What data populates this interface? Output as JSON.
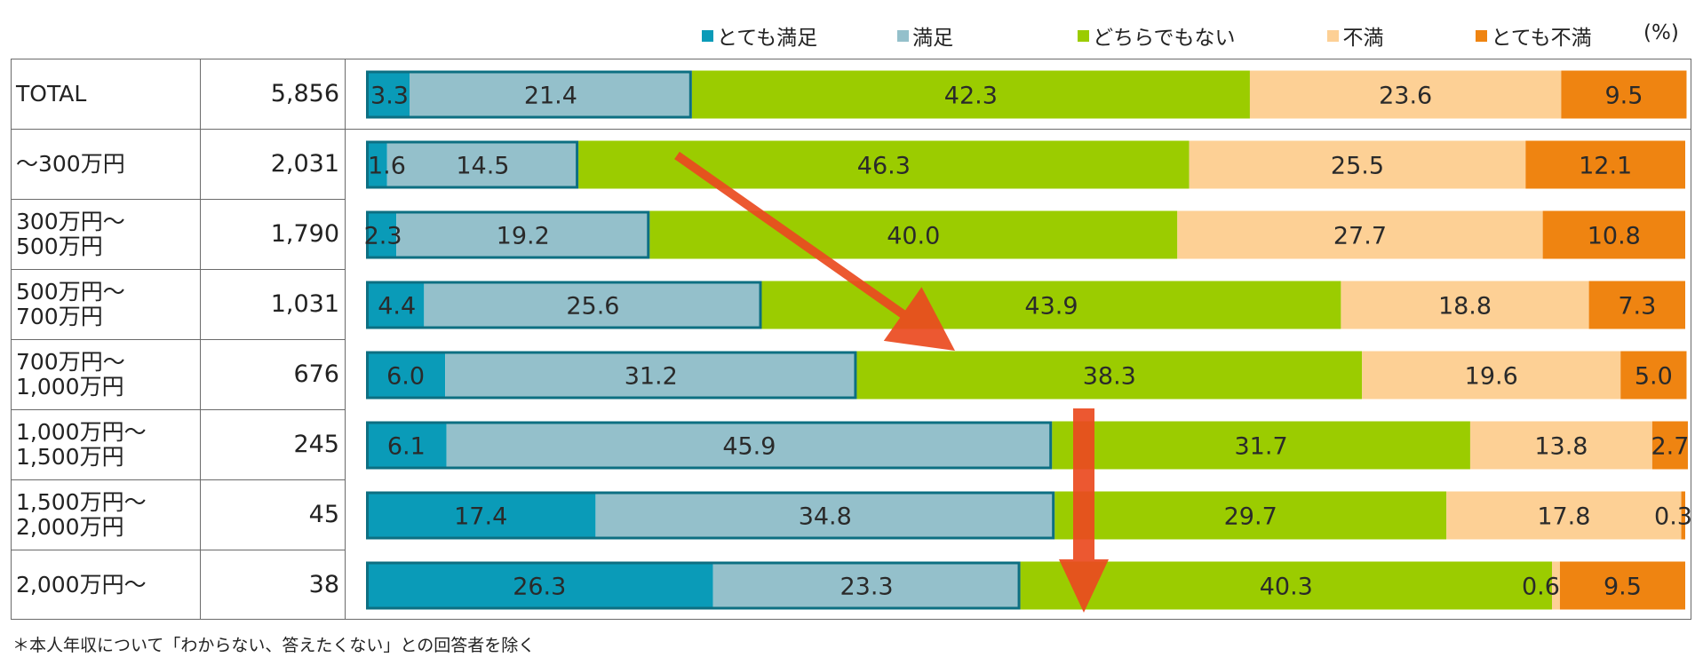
{
  "chart_data": {
    "type": "bar",
    "orientation": "horizontal",
    "stacked": true,
    "unit": "(%)",
    "legend": {
      "placement": "top"
    },
    "columns": {
      "n_header": "",
      "label_header": ""
    },
    "series": [
      {
        "name": "とても満足",
        "color": "#0a9bb8",
        "values": [
          3.3,
          1.6,
          2.3,
          4.4,
          6.0,
          6.1,
          17.4,
          26.3
        ]
      },
      {
        "name": "満足",
        "color": "#94c0cb",
        "values": [
          21.4,
          14.5,
          19.2,
          25.6,
          31.2,
          45.9,
          34.8,
          23.3
        ]
      },
      {
        "name": "どちらでもない",
        "color": "#9bcc00",
        "values": [
          42.3,
          46.3,
          40.0,
          43.9,
          38.3,
          31.7,
          29.7,
          40.3
        ]
      },
      {
        "name": "不満",
        "color": "#fdd095",
        "values": [
          23.6,
          25.5,
          27.7,
          18.8,
          19.6,
          13.8,
          17.8,
          0.6
        ]
      },
      {
        "name": "とても不満",
        "color": "#ef8411",
        "values": [
          9.5,
          12.1,
          10.8,
          7.3,
          5.0,
          2.7,
          0.3,
          9.5
        ]
      }
    ],
    "categories": [
      {
        "label_lines": [
          "TOTAL"
        ],
        "n": "5,856"
      },
      {
        "label_lines": [
          "～300万円"
        ],
        "n": "2,031"
      },
      {
        "label_lines": [
          "300万円～",
          "500万円"
        ],
        "n": "1,790"
      },
      {
        "label_lines": [
          "500万円～",
          "700万円"
        ],
        "n": "1,031"
      },
      {
        "label_lines": [
          "700万円～",
          "1,000万円"
        ],
        "n": "676"
      },
      {
        "label_lines": [
          "1,000万円～",
          "1,500万円"
        ],
        "n": "245"
      },
      {
        "label_lines": [
          "1,500万円～",
          "2,000万円"
        ],
        "n": "45"
      },
      {
        "label_lines": [
          "2,000万円～"
        ],
        "n": "38"
      }
    ],
    "value_labels": [
      [
        "3.3",
        "21.4",
        "42.3",
        "23.6",
        "9.5"
      ],
      [
        "1.6",
        "14.5",
        "46.3",
        "25.5",
        "12.1"
      ],
      [
        "2.3",
        "19.2",
        "40.0",
        "27.7",
        "10.8"
      ],
      [
        "4.4",
        "25.6",
        "43.9",
        "18.8",
        "7.3"
      ],
      [
        "6.0",
        "31.2",
        "38.3",
        "19.6",
        "5.0"
      ],
      [
        "6.1",
        "45.9",
        "31.7",
        "13.8",
        "2.7"
      ],
      [
        "17.4",
        "34.8",
        "29.7",
        "17.8",
        "0.3"
      ],
      [
        "26.3",
        "23.3",
        "40.3",
        "0.6",
        "9.5"
      ]
    ],
    "highlight": {
      "series_outlined": [
        "とても満足",
        "満足"
      ],
      "outline_color": "#0d6f82"
    },
    "annotations": [
      {
        "type": "arrow",
        "color": "#ea4a1f",
        "meaning": "trend-diagonal"
      },
      {
        "type": "arrow",
        "color": "#ea4a1f",
        "meaning": "trend-down"
      }
    ],
    "xlim": [
      0,
      100
    ]
  },
  "footnote": "＊本人年収について「わからない、答えたくない」との回答者を除く"
}
